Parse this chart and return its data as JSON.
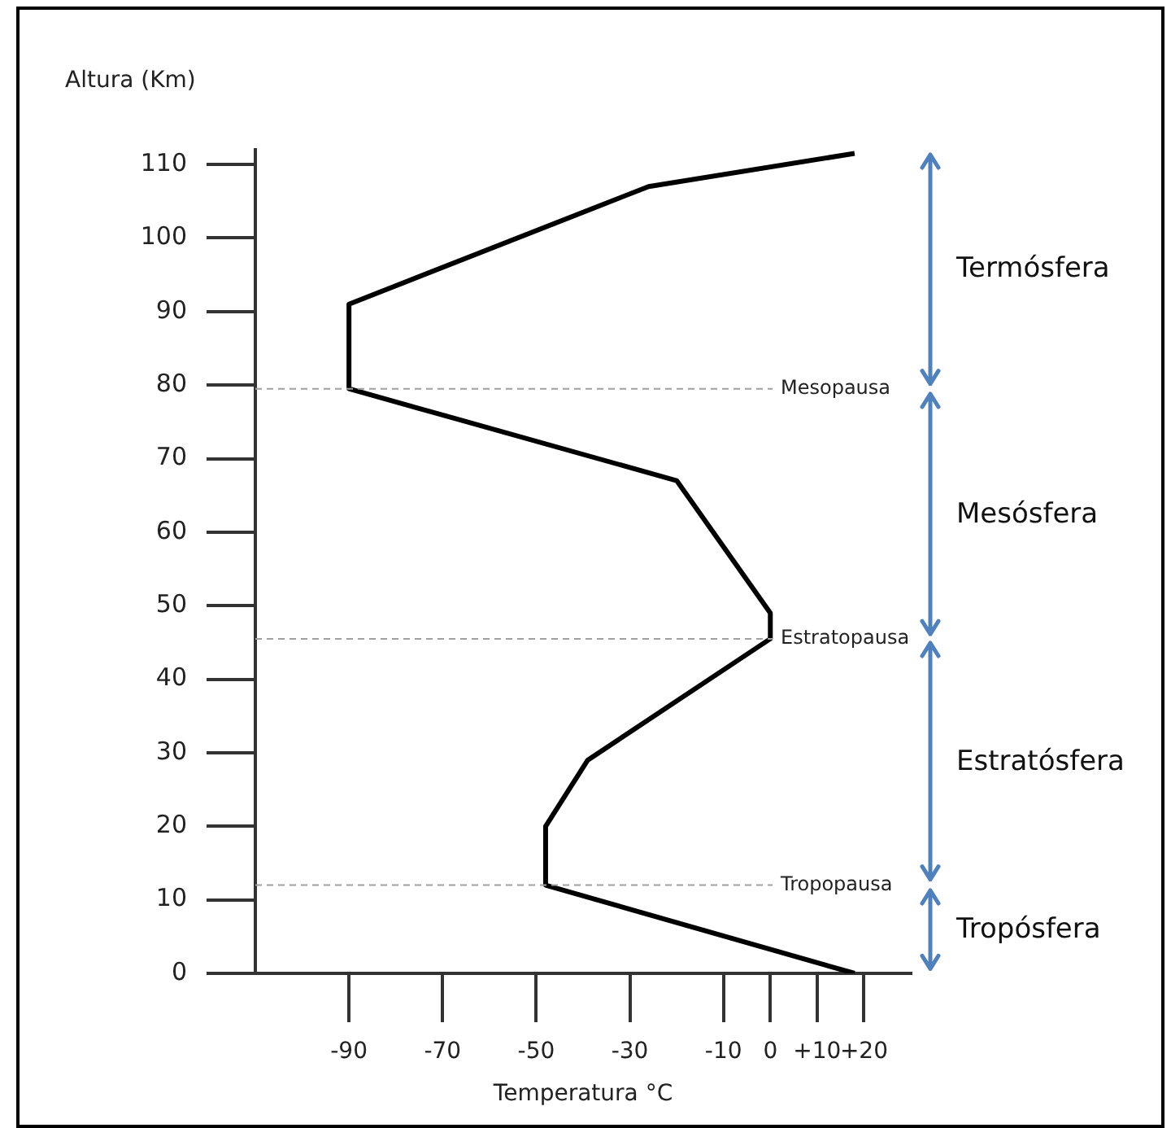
{
  "chart_data": {
    "type": "line",
    "xlabel": "Temperatura °C",
    "ylabel": "Altura (Km)",
    "series": [
      {
        "color": "#000000",
        "x": [
          18,
          -48,
          -48,
          -39,
          0,
          0,
          -20,
          -90,
          -90,
          -26,
          18
        ],
        "values": [
          0,
          12,
          20,
          29,
          45.5,
          49,
          67,
          79.5,
          91,
          107,
          111.5
        ]
      }
    ],
    "xlim": [
      -110,
      30
    ],
    "xticks": [
      -90,
      -70,
      -50,
      -30,
      -10,
      0,
      {
        "value": 10,
        "label": "+10"
      },
      {
        "value": 20,
        "label": "+20"
      }
    ],
    "ylim": [
      0,
      112
    ],
    "yticks": [
      0,
      10,
      20,
      30,
      40,
      50,
      60,
      70,
      80,
      90,
      100,
      110
    ],
    "ref_lines": [
      {
        "axis": "y",
        "value": 79.5,
        "label": "Mesopausa",
        "color": "#a0a0a0",
        "line_style": "dashed"
      },
      {
        "axis": "y",
        "value": 45.5,
        "label": "Estratopausa",
        "color": "#a0a0a0",
        "line_style": "dashed"
      },
      {
        "axis": "y",
        "value": 12,
        "label": "Tropopausa",
        "color": "#a0a0a0",
        "line_style": "dashed"
      }
    ],
    "annotations": [
      "Termósfera",
      "Mesósfera",
      "Estratósfera",
      "Tropósfera"
    ],
    "grid": false,
    "legend": false,
    "marker": "none",
    "line_style": "solid"
  }
}
